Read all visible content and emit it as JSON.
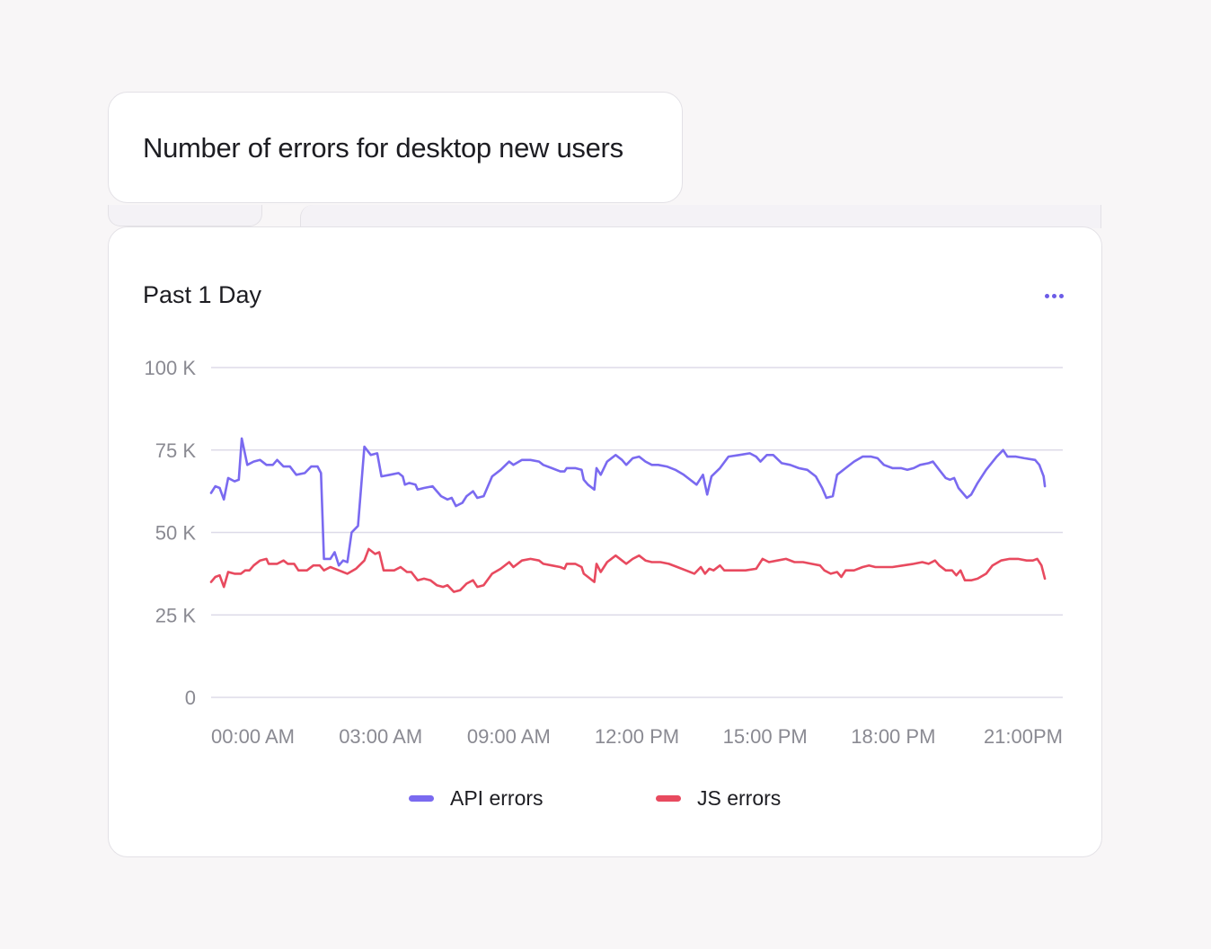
{
  "title": "Number of errors for desktop new users",
  "card": {
    "range_label": "Past 1 Day",
    "more_icon": "ellipsis-icon"
  },
  "colors": {
    "api": "#7a6af0",
    "js": "#e84a5f",
    "grid": "#dddbe8",
    "tick": "#8a8a92"
  },
  "chart_data": {
    "type": "line",
    "title": "Number of errors for desktop new users",
    "xlabel": "",
    "ylabel": "",
    "ylim": [
      0,
      100000
    ],
    "y_ticks": [
      {
        "value": 0,
        "label": "0"
      },
      {
        "value": 25000,
        "label": "25 K"
      },
      {
        "value": 50000,
        "label": "50 K"
      },
      {
        "value": 75000,
        "label": "75 K"
      },
      {
        "value": 100000,
        "label": "100 K"
      }
    ],
    "x_ticks": [
      {
        "value": 0,
        "label": "00:00 AM"
      },
      {
        "value": 3,
        "label": "03:00 AM"
      },
      {
        "value": 6,
        "label": "09:00 AM"
      },
      {
        "value": 9,
        "label": "12:00 PM"
      },
      {
        "value": 12,
        "label": "15:00 PM"
      },
      {
        "value": 15,
        "label": "18:00 PM"
      },
      {
        "value": 18,
        "label": "21:00PM"
      }
    ],
    "xlim": [
      0,
      20
    ],
    "grid": true,
    "legend_position": "bottom",
    "series": [
      {
        "name": "API errors",
        "color": "#7a6af0",
        "points": [
          [
            0.0,
            62000
          ],
          [
            0.1,
            64000
          ],
          [
            0.2,
            63500
          ],
          [
            0.3,
            60000
          ],
          [
            0.4,
            66500
          ],
          [
            0.55,
            65500
          ],
          [
            0.65,
            66000
          ],
          [
            0.72,
            78500
          ],
          [
            0.85,
            70500
          ],
          [
            1.0,
            71500
          ],
          [
            1.15,
            72000
          ],
          [
            1.3,
            70500
          ],
          [
            1.45,
            70500
          ],
          [
            1.55,
            72000
          ],
          [
            1.7,
            70000
          ],
          [
            1.85,
            70000
          ],
          [
            2.0,
            67500
          ],
          [
            2.2,
            68000
          ],
          [
            2.35,
            70000
          ],
          [
            2.5,
            70000
          ],
          [
            2.58,
            68000
          ],
          [
            2.65,
            42000
          ],
          [
            2.8,
            42000
          ],
          [
            2.9,
            44000
          ],
          [
            3.0,
            40000
          ],
          [
            3.1,
            41500
          ],
          [
            3.2,
            41000
          ],
          [
            3.3,
            50000
          ],
          [
            3.45,
            52000
          ],
          [
            3.6,
            76000
          ],
          [
            3.75,
            73500
          ],
          [
            3.9,
            74000
          ],
          [
            4.0,
            67000
          ],
          [
            4.2,
            67500
          ],
          [
            4.4,
            68000
          ],
          [
            4.5,
            67000
          ],
          [
            4.55,
            64500
          ],
          [
            4.65,
            65000
          ],
          [
            4.8,
            64500
          ],
          [
            4.85,
            63000
          ],
          [
            5.0,
            63500
          ],
          [
            5.2,
            64000
          ],
          [
            5.4,
            61000
          ],
          [
            5.55,
            60000
          ],
          [
            5.65,
            60500
          ],
          [
            5.75,
            58000
          ],
          [
            5.9,
            59000
          ],
          [
            6.0,
            61000
          ],
          [
            6.15,
            62500
          ],
          [
            6.25,
            60500
          ],
          [
            6.4,
            61000
          ],
          [
            6.6,
            67000
          ],
          [
            6.8,
            69000
          ],
          [
            7.0,
            71500
          ],
          [
            7.1,
            70500
          ],
          [
            7.3,
            72000
          ],
          [
            7.5,
            72000
          ],
          [
            7.7,
            71500
          ],
          [
            7.8,
            70500
          ],
          [
            8.0,
            69500
          ],
          [
            8.2,
            68500
          ],
          [
            8.3,
            68500
          ],
          [
            8.35,
            69500
          ],
          [
            8.55,
            69500
          ],
          [
            8.7,
            69000
          ],
          [
            8.75,
            66000
          ],
          [
            8.85,
            64500
          ],
          [
            9.0,
            63000
          ],
          [
            9.05,
            69500
          ],
          [
            9.15,
            67500
          ],
          [
            9.3,
            71500
          ],
          [
            9.5,
            73500
          ],
          [
            9.65,
            72000
          ],
          [
            9.75,
            70500
          ],
          [
            9.9,
            72500
          ],
          [
            10.05,
            73000
          ],
          [
            10.2,
            71500
          ],
          [
            10.35,
            70500
          ],
          [
            10.5,
            70500
          ],
          [
            10.7,
            70000
          ],
          [
            10.9,
            69000
          ],
          [
            11.1,
            67500
          ],
          [
            11.4,
            64500
          ],
          [
            11.55,
            67500
          ],
          [
            11.65,
            61500
          ],
          [
            11.75,
            67000
          ],
          [
            11.95,
            69500
          ],
          [
            12.15,
            73000
          ],
          [
            12.4,
            73500
          ],
          [
            12.65,
            74000
          ],
          [
            12.8,
            73000
          ],
          [
            12.9,
            71500
          ],
          [
            13.05,
            73500
          ],
          [
            13.2,
            73500
          ],
          [
            13.4,
            71000
          ],
          [
            13.6,
            70500
          ],
          [
            13.8,
            69500
          ],
          [
            14.0,
            69000
          ],
          [
            14.2,
            67000
          ],
          [
            14.35,
            63500
          ],
          [
            14.45,
            60500
          ],
          [
            14.6,
            61000
          ],
          [
            14.7,
            67500
          ],
          [
            14.9,
            69500
          ],
          [
            15.1,
            71500
          ],
          [
            15.3,
            73000
          ],
          [
            15.5,
            73000
          ],
          [
            15.65,
            72500
          ],
          [
            15.8,
            70500
          ],
          [
            16.0,
            69500
          ],
          [
            16.2,
            69500
          ],
          [
            16.35,
            69000
          ],
          [
            16.5,
            69500
          ],
          [
            16.65,
            70500
          ],
          [
            16.85,
            71000
          ],
          [
            16.95,
            71500
          ],
          [
            17.1,
            69000
          ],
          [
            17.25,
            66500
          ],
          [
            17.35,
            66000
          ],
          [
            17.45,
            66500
          ],
          [
            17.55,
            63500
          ],
          [
            17.65,
            62000
          ],
          [
            17.75,
            60500
          ],
          [
            17.85,
            61500
          ],
          [
            18.0,
            65000
          ],
          [
            18.2,
            69000
          ],
          [
            18.45,
            73000
          ],
          [
            18.6,
            75000
          ],
          [
            18.7,
            73000
          ],
          [
            18.9,
            73000
          ],
          [
            19.1,
            72500
          ],
          [
            19.35,
            72000
          ],
          [
            19.45,
            70500
          ],
          [
            19.55,
            67000
          ],
          [
            19.58,
            64000
          ]
        ]
      },
      {
        "name": "JS errors",
        "color": "#e84a5f",
        "points": [
          [
            0.0,
            35000
          ],
          [
            0.1,
            36500
          ],
          [
            0.2,
            37000
          ],
          [
            0.3,
            33500
          ],
          [
            0.4,
            38000
          ],
          [
            0.55,
            37500
          ],
          [
            0.7,
            37500
          ],
          [
            0.8,
            38500
          ],
          [
            0.9,
            38500
          ],
          [
            1.0,
            40000
          ],
          [
            1.15,
            41500
          ],
          [
            1.3,
            42000
          ],
          [
            1.35,
            40500
          ],
          [
            1.55,
            40500
          ],
          [
            1.7,
            41500
          ],
          [
            1.8,
            40500
          ],
          [
            1.95,
            40500
          ],
          [
            2.05,
            38500
          ],
          [
            2.25,
            38500
          ],
          [
            2.4,
            40000
          ],
          [
            2.55,
            40000
          ],
          [
            2.65,
            38500
          ],
          [
            2.8,
            39500
          ],
          [
            3.0,
            38500
          ],
          [
            3.2,
            37500
          ],
          [
            3.4,
            39000
          ],
          [
            3.6,
            41500
          ],
          [
            3.7,
            45000
          ],
          [
            3.85,
            43500
          ],
          [
            3.95,
            44000
          ],
          [
            4.05,
            38500
          ],
          [
            4.3,
            38500
          ],
          [
            4.45,
            39500
          ],
          [
            4.6,
            38000
          ],
          [
            4.7,
            38000
          ],
          [
            4.85,
            35500
          ],
          [
            5.0,
            36000
          ],
          [
            5.15,
            35500
          ],
          [
            5.3,
            34000
          ],
          [
            5.45,
            33500
          ],
          [
            5.55,
            34000
          ],
          [
            5.7,
            32000
          ],
          [
            5.85,
            32500
          ],
          [
            6.0,
            34500
          ],
          [
            6.15,
            35500
          ],
          [
            6.25,
            33500
          ],
          [
            6.4,
            34000
          ],
          [
            6.6,
            37500
          ],
          [
            6.8,
            39000
          ],
          [
            7.0,
            41000
          ],
          [
            7.1,
            39500
          ],
          [
            7.3,
            41500
          ],
          [
            7.5,
            42000
          ],
          [
            7.7,
            41500
          ],
          [
            7.8,
            40500
          ],
          [
            8.0,
            40000
          ],
          [
            8.2,
            39500
          ],
          [
            8.3,
            39000
          ],
          [
            8.35,
            40500
          ],
          [
            8.55,
            40500
          ],
          [
            8.7,
            39500
          ],
          [
            8.75,
            37500
          ],
          [
            8.85,
            36500
          ],
          [
            9.0,
            35000
          ],
          [
            9.05,
            40500
          ],
          [
            9.15,
            38000
          ],
          [
            9.3,
            41000
          ],
          [
            9.5,
            43000
          ],
          [
            9.65,
            41500
          ],
          [
            9.75,
            40500
          ],
          [
            9.9,
            42000
          ],
          [
            10.05,
            43000
          ],
          [
            10.2,
            41500
          ],
          [
            10.35,
            41000
          ],
          [
            10.55,
            41000
          ],
          [
            10.75,
            40500
          ],
          [
            10.95,
            39500
          ],
          [
            11.15,
            38500
          ],
          [
            11.35,
            37500
          ],
          [
            11.5,
            39500
          ],
          [
            11.6,
            37500
          ],
          [
            11.7,
            39000
          ],
          [
            11.8,
            38500
          ],
          [
            11.95,
            40000
          ],
          [
            12.05,
            38500
          ],
          [
            12.3,
            38500
          ],
          [
            12.55,
            38500
          ],
          [
            12.8,
            39000
          ],
          [
            12.95,
            42000
          ],
          [
            13.1,
            41000
          ],
          [
            13.3,
            41500
          ],
          [
            13.5,
            42000
          ],
          [
            13.7,
            41000
          ],
          [
            13.9,
            41000
          ],
          [
            14.1,
            40500
          ],
          [
            14.3,
            40000
          ],
          [
            14.4,
            38500
          ],
          [
            14.55,
            37500
          ],
          [
            14.7,
            38000
          ],
          [
            14.8,
            36500
          ],
          [
            14.9,
            38500
          ],
          [
            15.1,
            38500
          ],
          [
            15.3,
            39500
          ],
          [
            15.45,
            40000
          ],
          [
            15.6,
            39500
          ],
          [
            15.8,
            39500
          ],
          [
            16.0,
            39500
          ],
          [
            16.25,
            40000
          ],
          [
            16.5,
            40500
          ],
          [
            16.7,
            41000
          ],
          [
            16.85,
            40500
          ],
          [
            17.0,
            41500
          ],
          [
            17.1,
            40000
          ],
          [
            17.25,
            38500
          ],
          [
            17.4,
            38500
          ],
          [
            17.5,
            37000
          ],
          [
            17.6,
            38500
          ],
          [
            17.7,
            35500
          ],
          [
            17.85,
            35500
          ],
          [
            18.0,
            36000
          ],
          [
            18.2,
            37500
          ],
          [
            18.35,
            40000
          ],
          [
            18.55,
            41500
          ],
          [
            18.75,
            42000
          ],
          [
            18.95,
            42000
          ],
          [
            19.15,
            41500
          ],
          [
            19.3,
            41500
          ],
          [
            19.4,
            42000
          ],
          [
            19.5,
            40000
          ],
          [
            19.58,
            36000
          ]
        ]
      }
    ]
  },
  "legend": [
    {
      "name": "API errors",
      "color": "#7a6af0"
    },
    {
      "name": "JS errors",
      "color": "#e84a5f"
    }
  ]
}
